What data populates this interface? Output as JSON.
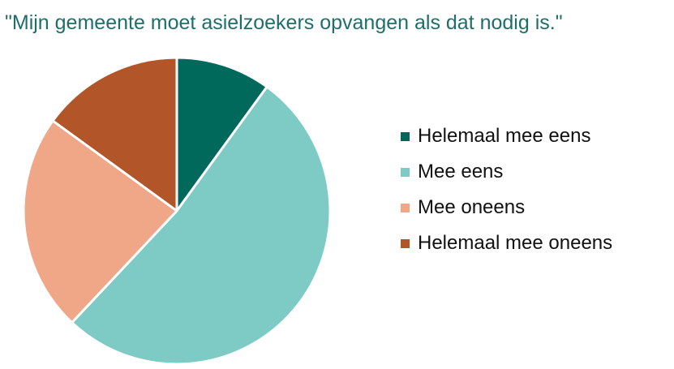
{
  "chart_data": {
    "type": "pie",
    "title": "\"Mijn gemeente moet asielzoekers opvangen als dat nodig is.\"",
    "categories": [
      "Helemaal mee eens",
      "Mee eens",
      "Mee oneens",
      "Helemaal mee oneens"
    ],
    "values": [
      10,
      52,
      23,
      15
    ],
    "colors": [
      "#00695c",
      "#7ecac4",
      "#f0a787",
      "#b2562a"
    ],
    "legend_position": "right",
    "start_angle": "top",
    "direction": "clockwise",
    "data_labels": false
  }
}
